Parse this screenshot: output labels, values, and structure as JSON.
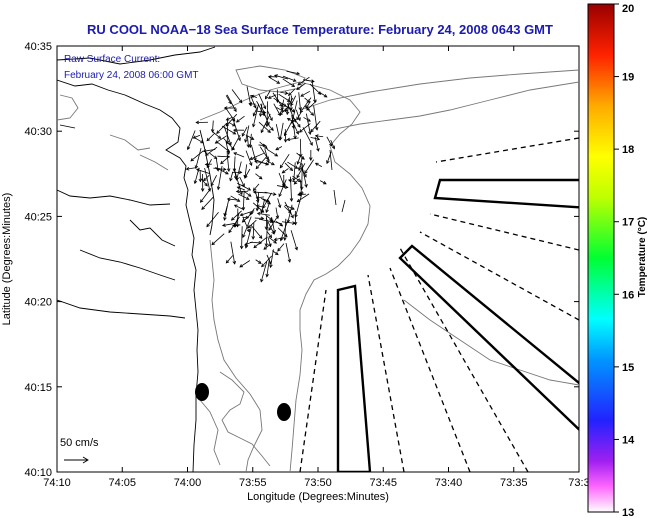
{
  "title": "RU COOL  NOAA−18  Sea Surface Temperature:  February 24, 2008 0643 GMT",
  "annotation": {
    "line1": "Raw Surface Current:",
    "line2": "February 24, 2008 06:00 GMT"
  },
  "scale_label": "50 cm/s",
  "axes": {
    "xlabel": "Longitude (Degrees:Minutes)",
    "ylabel": "Latitude (Degrees:Minutes)",
    "x_ticks": [
      "74:10",
      "74:05",
      "74:00",
      "73:55",
      "73:50",
      "73:45",
      "73:40",
      "73:35",
      "73:3"
    ],
    "y_ticks": [
      "40:35",
      "40:30",
      "40:25",
      "40:20",
      "40:15",
      "40:10"
    ]
  },
  "colorbar": {
    "label": "Temperature (°C)",
    "ticks": [
      "20",
      "19",
      "18",
      "17",
      "16",
      "15",
      "14",
      "13"
    ],
    "min": 13,
    "max": 20
  },
  "colors": {
    "title": "#1b1bb0",
    "annotation": "#1b1bb0",
    "contour": "#777777"
  }
}
